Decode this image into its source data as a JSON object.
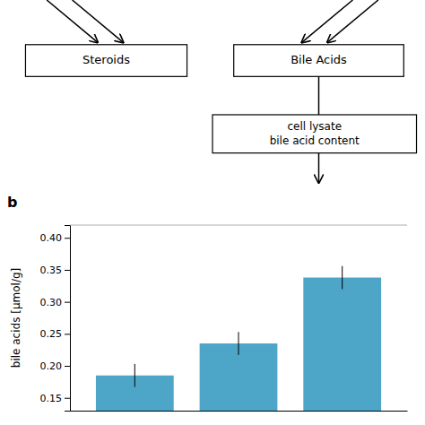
{
  "chart_data": {
    "type": "bar",
    "annotations": [
      "b",
      "Steroids",
      "Bile Acids",
      "cell lysate\nbile acid content"
    ],
    "ylabel": "bile acids [μmol/g]",
    "categories": [
      null,
      null,
      null
    ],
    "values": [
      0.185,
      0.235,
      0.338
    ],
    "errors": [
      0.018,
      0.018,
      0.018
    ],
    "color": "#4DA6C8",
    "ylim": [
      0.13,
      0.42
    ],
    "yticks": [
      {
        "value": 0.15,
        "label": "0.15"
      },
      {
        "value": 0.2,
        "label": "0.20"
      },
      {
        "value": 0.25,
        "label": "0.25"
      },
      {
        "value": 0.3,
        "label": "0.30"
      },
      {
        "value": 0.35,
        "label": "0.35"
      },
      {
        "value": 0.4,
        "label": "0.40"
      }
    ],
    "tick_labels": "y",
    "grid": false
  }
}
